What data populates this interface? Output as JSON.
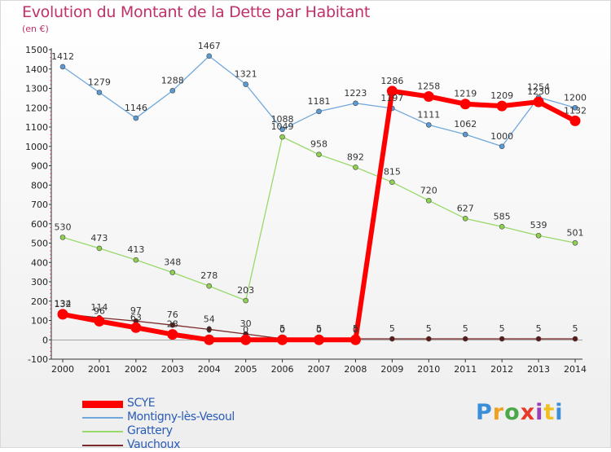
{
  "title": "Evolution du Montant de la Dette par Habitant",
  "unit": "(en €)",
  "brand": "Proxiti",
  "brand_colors": [
    "#3b8fd8",
    "#f0a020",
    "#4aa84a",
    "#e83a2a",
    "#9b3fb6",
    "#f0c020",
    "#3b8fd8"
  ],
  "chart_data": {
    "type": "line",
    "x": [
      "2000",
      "2001",
      "2002",
      "2003",
      "2004",
      "2005",
      "2006",
      "2007",
      "2008",
      "2009",
      "2010",
      "2011",
      "2012",
      "2013",
      "2014"
    ],
    "ylim": [
      -100,
      1500
    ],
    "yticks": [
      -100,
      0,
      100,
      200,
      300,
      400,
      500,
      600,
      700,
      800,
      900,
      1000,
      1100,
      1200,
      1300,
      1400,
      1500
    ],
    "grid": false,
    "legend": "bottom-left",
    "series": [
      {
        "name": "Montigny-lès-Vesoul",
        "color": "#5b9bd5",
        "line": "#6fa8dc",
        "width": 1.3,
        "values": [
          1412,
          1279,
          1146,
          1288,
          1467,
          1321,
          1088,
          1181,
          1223,
          1197,
          1111,
          1062,
          1000,
          1254,
          1200
        ],
        "labels": [
          "1412",
          "1279",
          "1146",
          "1288",
          "1467",
          "1321",
          "1088",
          "1181",
          "1223",
          "1197",
          "1111",
          "1062",
          "1000",
          "1254",
          "1200"
        ]
      },
      {
        "name": "Grattery",
        "color": "#8fd14f",
        "line": "#99d96a",
        "width": 1.3,
        "values": [
          530,
          473,
          413,
          348,
          278,
          203,
          1049,
          958,
          892,
          815,
          720,
          627,
          585,
          539,
          501
        ],
        "labels": [
          "530",
          "473",
          "413",
          "348",
          "278",
          "203",
          "1049",
          "958",
          "892",
          "815",
          "720",
          "627",
          "585",
          "539",
          "501"
        ]
      },
      {
        "name": "Vauchoux",
        "color": "#5a1a1a",
        "line": "#7a2a2a",
        "width": 1.3,
        "values": [
          134,
          114,
          97,
          76,
          54,
          30,
          5,
          5,
          5,
          5,
          5,
          5,
          5,
          5,
          5
        ],
        "labels": [
          "134",
          "114",
          "97",
          "76",
          "54",
          "30",
          "5",
          "5",
          "5",
          "5",
          "5",
          "5",
          "5",
          "5",
          "5"
        ]
      },
      {
        "name": "SCYE",
        "color": "#ff0000",
        "line": "#ff0000",
        "width": 6,
        "values": [
          132,
          96,
          63,
          28,
          0,
          0,
          0,
          0,
          0,
          1286,
          1258,
          1219,
          1209,
          1230,
          1132
        ],
        "labels": [
          "132",
          "96",
          "63",
          "28",
          "0",
          "0",
          "0",
          "0",
          "0",
          "1286",
          "1258",
          "1219",
          "1209",
          "1230",
          "1132"
        ]
      }
    ]
  }
}
